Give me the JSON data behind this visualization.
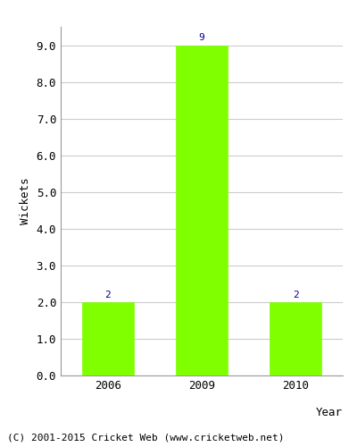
{
  "categories": [
    "2006",
    "2009",
    "2010"
  ],
  "values": [
    2,
    9,
    2
  ],
  "bar_color": "#7FFF00",
  "bar_edge_color": "#7FFF00",
  "ylabel": "Wickets",
  "xlabel": "Year",
  "ylim": [
    0,
    9.5
  ],
  "yticks": [
    0.0,
    1.0,
    2.0,
    3.0,
    4.0,
    5.0,
    6.0,
    7.0,
    8.0,
    9.0
  ],
  "annotation_color": "#00008B",
  "annotation_fontsize": 8,
  "ylabel_fontsize": 9,
  "xlabel_fontsize": 9,
  "tick_fontsize": 9,
  "footer_text": "(C) 2001-2015 Cricket Web (www.cricketweb.net)",
  "footer_fontsize": 8,
  "background_color": "#ffffff",
  "grid_color": "#cccccc",
  "bar_width": 0.55,
  "spine_color": "#999999"
}
